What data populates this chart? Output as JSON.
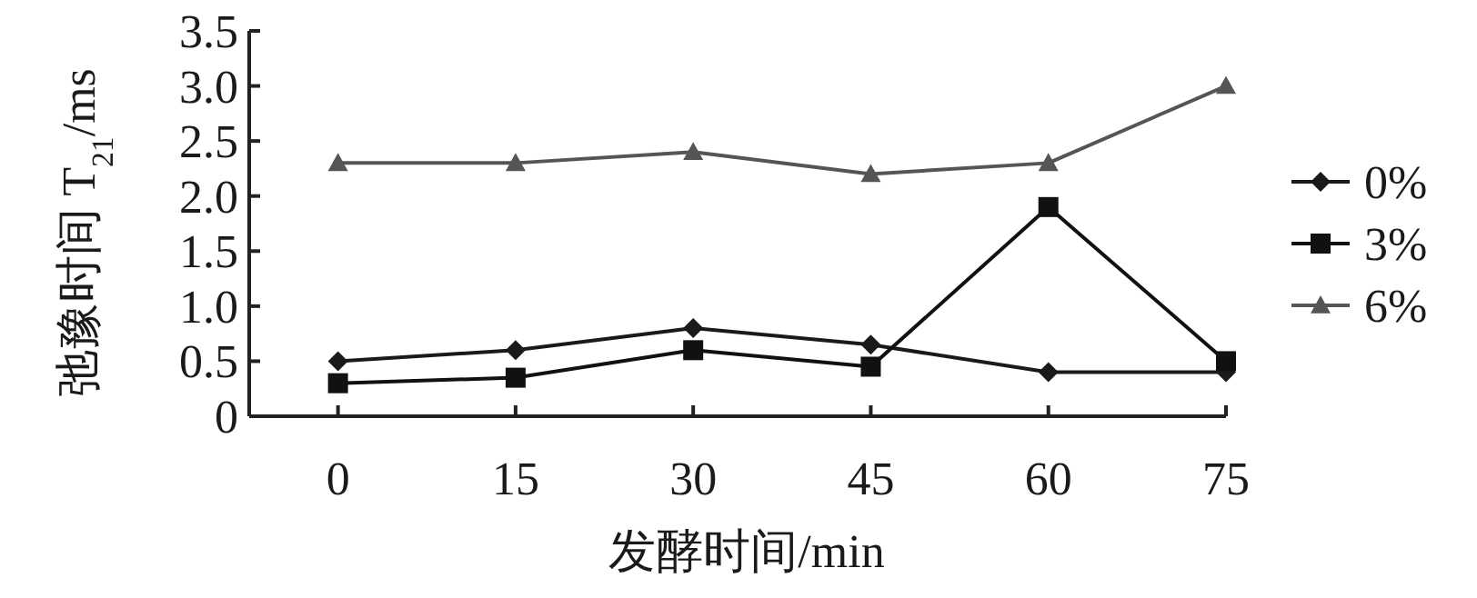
{
  "chart_data": {
    "type": "line",
    "xlabel": "发酵时间/min",
    "ylabel": "弛豫时间 T$_{21}$/ms",
    "categories": [
      "0",
      "15",
      "30",
      "45",
      "60",
      "75"
    ],
    "ylim": [
      0,
      3.5
    ],
    "yticks": [
      {
        "value": 0,
        "label": "0"
      },
      0.5,
      {
        "value": 1,
        "label": "1.0"
      },
      1.5,
      {
        "value": 2,
        "label": "2.0"
      },
      2.5,
      {
        "value": 3,
        "label": "3.0"
      },
      3.5
    ],
    "grid": false,
    "legend": "right",
    "series": [
      {
        "name": "0%",
        "color": "#1a1a1a",
        "marker": "diamond",
        "values": [
          0.5,
          0.6,
          0.8,
          0.65,
          0.4,
          0.4
        ]
      },
      {
        "name": "3%",
        "color": "#111111",
        "marker": "square",
        "values": [
          0.3,
          0.35,
          0.6,
          0.45,
          1.9,
          0.5
        ]
      },
      {
        "name": "6%",
        "color": "#555555",
        "marker": "triangle",
        "values": [
          2.3,
          2.3,
          2.4,
          2.2,
          2.3,
          3.0
        ]
      }
    ]
  }
}
